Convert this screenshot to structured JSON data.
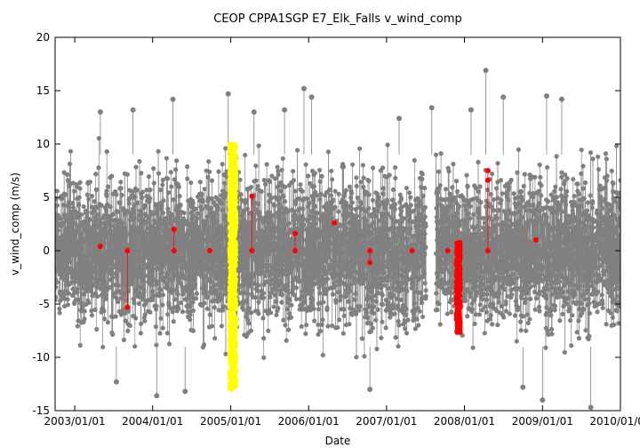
{
  "chart_data": {
    "type": "scatter",
    "title": "CEOP CPPA1SGP E7_Elk_Falls  v_wind_comp",
    "xlabel": "Date",
    "ylabel": "v_wind_comp (m/s)",
    "xlim": [
      "2002/10/01",
      "2010/01/01"
    ],
    "ylim": [
      -15,
      20
    ],
    "x_ticks": [
      "2003/01/01",
      "2004/01/01",
      "2005/01/01",
      "2006/01/01",
      "2007/01/01",
      "2008/01/01",
      "2009/01/01",
      "2010/01/01"
    ],
    "y_ticks": [
      -15,
      -10,
      -5,
      0,
      5,
      10,
      15,
      20
    ],
    "grid": false,
    "legend": "none",
    "series": [
      {
        "color": "#808080",
        "description_points": "dense hourly observations",
        "points": [
          {
            "x": "2003/05/01",
            "y": 13.0
          },
          {
            "x": "2003/07/15",
            "y": -12.3
          },
          {
            "x": "2003/10/01",
            "y": 13.2
          },
          {
            "x": "2004/01/20",
            "y": -13.6
          },
          {
            "x": "2004/04/05",
            "y": 14.2
          },
          {
            "x": "2004/06/01",
            "y": -13.2
          },
          {
            "x": "2004/12/20",
            "y": 14.7
          },
          {
            "x": "2005/04/20",
            "y": 13.0
          },
          {
            "x": "2005/09/10",
            "y": 13.2
          },
          {
            "x": "2005/12/10",
            "y": 15.2
          },
          {
            "x": "2006/01/15",
            "y": 14.4
          },
          {
            "x": "2006/10/15",
            "y": -13.0
          },
          {
            "x": "2007/03/01",
            "y": 12.4
          },
          {
            "x": "2007/08/01",
            "y": 13.4
          },
          {
            "x": "2008/02/01",
            "y": 13.2
          },
          {
            "x": "2008/04/10",
            "y": 16.9
          },
          {
            "x": "2008/07/01",
            "y": 14.4
          },
          {
            "x": "2008/10/01",
            "y": -12.8
          },
          {
            "x": "2009/01/01",
            "y": -14.0
          },
          {
            "x": "2009/01/20",
            "y": 14.5
          },
          {
            "x": "2009/04/01",
            "y": 14.2
          },
          {
            "x": "2009/08/15",
            "y": -14.7
          }
        ]
      },
      {
        "color": "#ffff00",
        "description_points": "Jan 2005 cluster",
        "x_range": [
          "2004/12/28",
          "2005/01/25"
        ],
        "y_range": [
          -13.0,
          10.0
        ]
      },
      {
        "color": "#ff0000",
        "points": [
          {
            "x": "2003/05/01",
            "y": 0.4
          },
          {
            "x": "2003/09/05",
            "y": 0.0
          },
          {
            "x": "2003/09/05",
            "y": -5.3
          },
          {
            "x": "2004/04/10",
            "y": 2.0
          },
          {
            "x": "2004/04/10",
            "y": 0.0
          },
          {
            "x": "2004/09/25",
            "y": 0.0
          },
          {
            "x": "2005/04/10",
            "y": 5.1
          },
          {
            "x": "2005/04/10",
            "y": 0.0
          },
          {
            "x": "2005/10/30",
            "y": 1.6
          },
          {
            "x": "2005/10/30",
            "y": 0.0
          },
          {
            "x": "2006/05/01",
            "y": 2.6
          },
          {
            "x": "2006/10/15",
            "y": 0.0
          },
          {
            "x": "2006/10/15",
            "y": -1.1
          },
          {
            "x": "2007/05/01",
            "y": 0.0
          },
          {
            "x": "2007/10/15",
            "y": 0.0
          },
          {
            "x": "2008/04/20",
            "y": 7.5
          },
          {
            "x": "2008/04/20",
            "y": 6.6
          },
          {
            "x": "2008/04/20",
            "y": 0.0
          },
          {
            "x": "2008/12/01",
            "y": 1.0
          }
        ],
        "cluster": {
          "x_range": [
            "2007/11/25",
            "2007/12/12"
          ],
          "y_range": [
            -7.7,
            0.8
          ]
        }
      }
    ]
  }
}
